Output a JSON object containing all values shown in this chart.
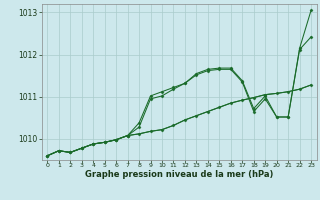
{
  "background_color": "#cde8ec",
  "grid_color": "#aacccc",
  "line_color": "#1a6b2a",
  "text_color": "#1a3a1a",
  "xlabel": "Graphe pression niveau de la mer (hPa)",
  "ylim": [
    1009.5,
    1013.2
  ],
  "xlim": [
    -0.5,
    23.5
  ],
  "yticks": [
    1010,
    1011,
    1012,
    1013
  ],
  "xticks": [
    0,
    1,
    2,
    3,
    4,
    5,
    6,
    7,
    8,
    9,
    10,
    11,
    12,
    13,
    14,
    15,
    16,
    17,
    18,
    19,
    20,
    21,
    22,
    23
  ],
  "series1": [
    1009.6,
    1009.72,
    1009.68,
    1009.78,
    1009.88,
    1009.92,
    1009.98,
    1010.08,
    1010.38,
    1011.02,
    1011.12,
    1011.22,
    1011.32,
    1011.55,
    1011.65,
    1011.68,
    1011.68,
    1011.38,
    1010.72,
    1011.02,
    1010.52,
    1010.52,
    1012.12,
    1012.42
  ],
  "series2": [
    1009.6,
    1009.72,
    1009.68,
    1009.78,
    1009.88,
    1009.92,
    1009.98,
    1010.08,
    1010.28,
    1010.95,
    1011.02,
    1011.18,
    1011.32,
    1011.52,
    1011.62,
    1011.65,
    1011.65,
    1011.35,
    1010.65,
    1010.95,
    1010.52,
    1010.52,
    1012.15,
    1013.05
  ],
  "series3": [
    1009.6,
    1009.72,
    1009.68,
    1009.78,
    1009.88,
    1009.92,
    1009.98,
    1010.08,
    1010.12,
    1010.18,
    1010.22,
    1010.32,
    1010.45,
    1010.55,
    1010.65,
    1010.75,
    1010.85,
    1010.92,
    1010.98,
    1011.05,
    1011.08,
    1011.12,
    1011.18,
    1011.28
  ],
  "series4": [
    1009.6,
    1009.72,
    1009.68,
    1009.78,
    1009.88,
    1009.92,
    1009.98,
    1010.08,
    1010.12,
    1010.18,
    1010.22,
    1010.32,
    1010.45,
    1010.55,
    1010.65,
    1010.75,
    1010.85,
    1010.92,
    1010.98,
    1011.05,
    1011.08,
    1011.12,
    1011.18,
    1011.28
  ]
}
